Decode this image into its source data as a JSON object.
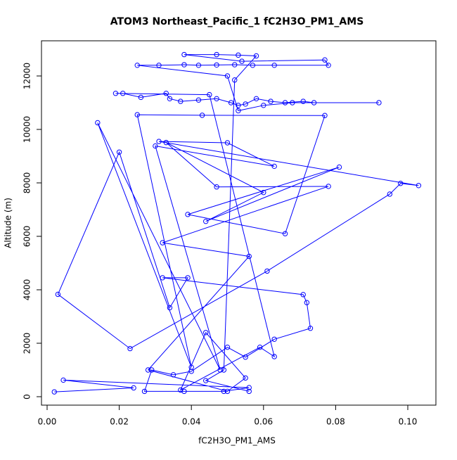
{
  "chart_data": {
    "type": "line",
    "title": "ATOM3 Northeast_Pacific_1 fC2H3O_PM1_AMS",
    "x_label": "fC2H3O_PM1_AMS",
    "y_label": "Altitude (m)",
    "x": [
      0.002,
      0.024,
      0.0045,
      0.056,
      0.049,
      0.038,
      0.027,
      0.029,
      0.035,
      0.04,
      0.05,
      0.055,
      0.063,
      0.073,
      0.072,
      0.071,
      0.032,
      0.039,
      0.034,
      0.02,
      0.003,
      0.023,
      0.061,
      0.095,
      0.098,
      0.103,
      0.031,
      0.05,
      0.063,
      0.03,
      0.048,
      0.014,
      0.04,
      0.025,
      0.043,
      0.077,
      0.066,
      0.039,
      0.081,
      0.044,
      0.06,
      0.033,
      0.047,
      0.078,
      0.032,
      0.056,
      0.028,
      0.05,
      0.055,
      0.044,
      0.037,
      0.059,
      0.063,
      0.045,
      0.019,
      0.021,
      0.026,
      0.033,
      0.034,
      0.037,
      0.042,
      0.047,
      0.051,
      0.053,
      0.055,
      0.058,
      0.062,
      0.066,
      0.071,
      0.074,
      0.092,
      0.068,
      0.06,
      0.053,
      0.05,
      0.025,
      0.031,
      0.038,
      0.042,
      0.047,
      0.052,
      0.057,
      0.063,
      0.078,
      0.077,
      0.054,
      0.038,
      0.047,
      0.053,
      0.058,
      0.052,
      0.049,
      0.044,
      0.056
    ],
    "series": [
      {
        "color": "#0000ff",
        "values": [
          180,
          330,
          620,
          340,
          200,
          200,
          200,
          1000,
          820,
          950,
          1850,
          1480,
          2150,
          2560,
          3520,
          3820,
          4450,
          4450,
          3330,
          9150,
          3830,
          1800,
          4700,
          7580,
          7980,
          7900,
          9550,
          9500,
          8620,
          9380,
          1000,
          10250,
          1100,
          10550,
          10530,
          10520,
          6100,
          6820,
          8590,
          6560,
          7640,
          9510,
          7850,
          7870,
          5760,
          5250,
          1000,
          200,
          700,
          2400,
          250,
          1850,
          1500,
          11300,
          11350,
          11350,
          11200,
          11350,
          11150,
          11050,
          11100,
          11150,
          11000,
          10900,
          10950,
          11150,
          11050,
          11000,
          11050,
          11000,
          11000,
          11000,
          10900,
          10700,
          12000,
          12400,
          12400,
          12420,
          12400,
          12410,
          12420,
          12400,
          12400,
          12400,
          12600,
          12550,
          12800,
          12800,
          12780,
          12750,
          11850,
          1000,
          600,
          200
        ]
      }
    ],
    "xlim": [
      -0.00156,
      0.1078
    ],
    "ylim": [
      -316,
      13316
    ],
    "xticks": [
      {
        "value": 0,
        "label": "0.00"
      },
      {
        "value": 0.02,
        "label": "0.02"
      },
      {
        "value": 0.04,
        "label": "0.04"
      },
      {
        "value": 0.06,
        "label": "0.06"
      },
      {
        "value": 0.08,
        "label": "0.08"
      },
      {
        "value": 0.1,
        "label": "0.10"
      }
    ],
    "yticks": [
      0,
      2000,
      4000,
      6000,
      8000,
      10000,
      12000
    ]
  }
}
